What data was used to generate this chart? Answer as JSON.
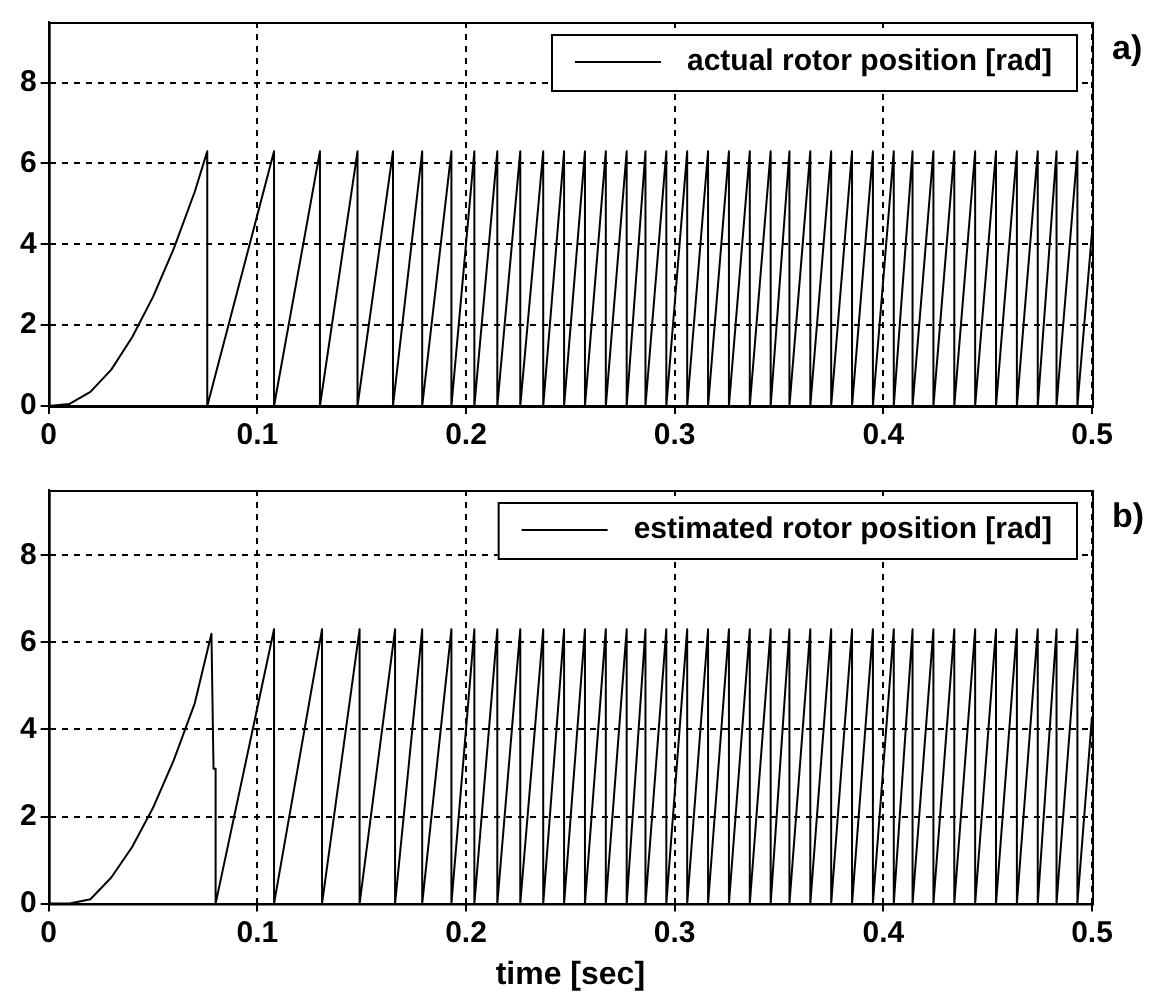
{
  "chart_data": [
    {
      "type": "line",
      "annotations": [
        "a)"
      ],
      "legend": "top right",
      "grid": true,
      "marker": "none",
      "xlim": [
        0,
        0.5
      ],
      "xticks": [
        0,
        0.1,
        0.2,
        0.3,
        0.4,
        0.5
      ],
      "ylim": [
        0,
        9.5
      ],
      "yticks": [
        0,
        2,
        4,
        6,
        8
      ],
      "x": [
        0,
        0.01,
        0.02,
        0.03,
        0.04,
        0.05,
        0.06,
        0.07,
        0.076,
        0.076,
        0.108,
        0.108,
        0.13,
        0.13,
        0.148,
        0.148,
        0.165,
        0.165,
        0.179,
        0.179,
        0.193,
        0.193,
        0.204,
        0.204,
        0.215,
        0.215,
        0.226,
        0.226,
        0.237,
        0.237,
        0.247,
        0.247,
        0.257,
        0.257,
        0.267,
        0.267,
        0.277,
        0.277,
        0.286,
        0.286,
        0.296,
        0.296,
        0.306,
        0.306,
        0.316,
        0.316,
        0.326,
        0.326,
        0.336,
        0.336,
        0.346,
        0.346,
        0.355,
        0.355,
        0.365,
        0.365,
        0.375,
        0.375,
        0.385,
        0.385,
        0.395,
        0.395,
        0.405,
        0.405,
        0.414,
        0.414,
        0.424,
        0.424,
        0.434,
        0.434,
        0.444,
        0.444,
        0.454,
        0.454,
        0.464,
        0.464,
        0.474,
        0.474,
        0.483,
        0.483,
        0.493,
        0.493,
        0.5
      ],
      "series": [
        {
          "name": "actual rotor position [rad]",
          "color": "#000000",
          "values": [
            0,
            0.05,
            0.35,
            0.9,
            1.7,
            2.7,
            3.9,
            5.3,
            6.3,
            0,
            6.3,
            0,
            6.3,
            0,
            6.3,
            0,
            6.3,
            0,
            6.3,
            0,
            6.3,
            0,
            6.3,
            0,
            6.3,
            0,
            6.3,
            0,
            6.3,
            0,
            6.3,
            0,
            6.3,
            0,
            6.3,
            0,
            6.3,
            0,
            6.3,
            0,
            6.3,
            0,
            6.3,
            0,
            6.3,
            0,
            6.3,
            0,
            6.3,
            0,
            6.3,
            0,
            6.3,
            0,
            6.3,
            0,
            6.3,
            0,
            6.3,
            0,
            6.3,
            0,
            6.3,
            0,
            6.3,
            0,
            6.3,
            0,
            6.3,
            0,
            6.3,
            0,
            6.3,
            0,
            6.3,
            0,
            6.3,
            0,
            6.3,
            0,
            6.3,
            0,
            4.3
          ]
        }
      ]
    },
    {
      "type": "line",
      "annotations": [
        "b)"
      ],
      "xlabel": "time [sec]",
      "legend": "top right",
      "grid": true,
      "marker": "none",
      "xlim": [
        0,
        0.5
      ],
      "xticks": [
        0,
        0.1,
        0.2,
        0.3,
        0.4,
        0.5
      ],
      "ylim": [
        0,
        9.5
      ],
      "yticks": [
        0,
        2,
        4,
        6,
        8
      ],
      "x": [
        0,
        0.01,
        0.02,
        0.03,
        0.04,
        0.05,
        0.06,
        0.07,
        0.078,
        0.079,
        0.08,
        0.08,
        0.108,
        0.108,
        0.131,
        0.131,
        0.149,
        0.149,
        0.166,
        0.166,
        0.179,
        0.179,
        0.193,
        0.193,
        0.204,
        0.204,
        0.215,
        0.215,
        0.226,
        0.226,
        0.237,
        0.237,
        0.247,
        0.247,
        0.257,
        0.257,
        0.267,
        0.267,
        0.277,
        0.277,
        0.286,
        0.286,
        0.296,
        0.296,
        0.306,
        0.306,
        0.316,
        0.316,
        0.326,
        0.326,
        0.336,
        0.336,
        0.346,
        0.346,
        0.355,
        0.355,
        0.365,
        0.365,
        0.375,
        0.375,
        0.385,
        0.385,
        0.395,
        0.395,
        0.405,
        0.405,
        0.414,
        0.414,
        0.424,
        0.424,
        0.434,
        0.434,
        0.444,
        0.444,
        0.454,
        0.454,
        0.464,
        0.464,
        0.474,
        0.474,
        0.483,
        0.483,
        0.493,
        0.493,
        0.5
      ],
      "series": [
        {
          "name": "estimated rotor position [rad]",
          "color": "#000000",
          "values": [
            0,
            0,
            0.1,
            0.6,
            1.3,
            2.2,
            3.3,
            4.6,
            6.2,
            3.1,
            3.1,
            0,
            6.3,
            0,
            6.3,
            0,
            6.3,
            0,
            6.3,
            0,
            6.3,
            0,
            6.3,
            0,
            6.3,
            0,
            6.3,
            0,
            6.3,
            0,
            6.3,
            0,
            6.3,
            0,
            6.3,
            0,
            6.3,
            0,
            6.3,
            0,
            6.3,
            0,
            6.3,
            0,
            6.3,
            0,
            6.3,
            0,
            6.3,
            0,
            6.3,
            0,
            6.3,
            0,
            6.3,
            0,
            6.3,
            0,
            6.3,
            0,
            6.3,
            0,
            6.3,
            0,
            6.3,
            0,
            6.3,
            0,
            6.3,
            0,
            6.3,
            0,
            6.3,
            0,
            6.3,
            0,
            6.3,
            0,
            6.3,
            0,
            6.3,
            0,
            6.3,
            0,
            4.3
          ]
        }
      ]
    }
  ]
}
